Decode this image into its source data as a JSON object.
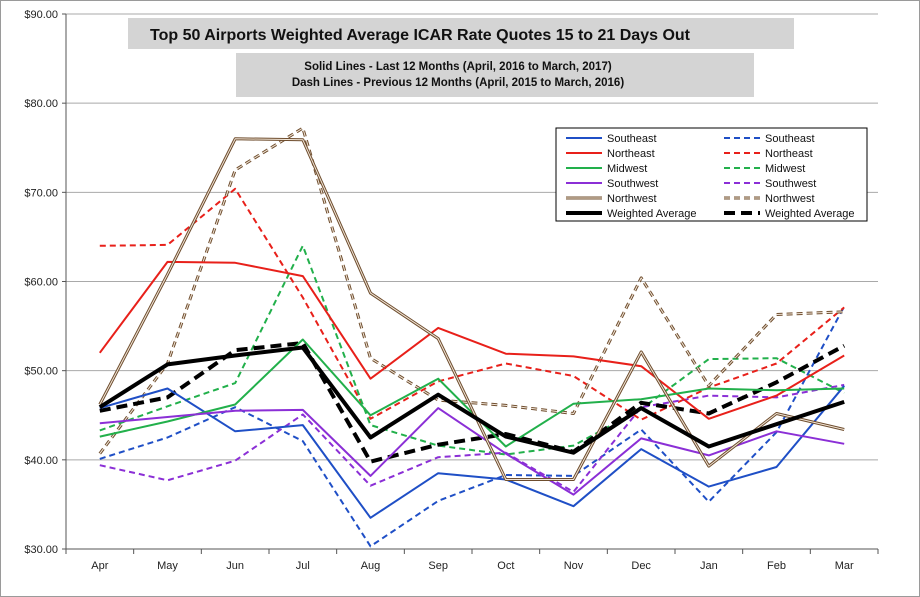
{
  "chart_data": {
    "type": "line",
    "title": "Top 50 Airports Weighted Average ICAR Rate Quotes 15 to 21 Days Out",
    "subtitle_lines": [
      "Solid Lines - Last 12 Months  (April, 2016 to March, 2017)",
      "Dash Lines - Previous 12 Months  (April, 2015 to March, 2016)"
    ],
    "categories": [
      "Apr",
      "May",
      "Jun",
      "Jul",
      "Aug",
      "Sep",
      "Oct",
      "Nov",
      "Dec",
      "Jan",
      "Feb",
      "Mar"
    ],
    "ylim": [
      30,
      90
    ],
    "yticks": [
      30,
      40,
      50,
      60,
      70,
      80,
      90
    ],
    "ytick_labels": [
      "$30.00",
      "$40.00",
      "$50.00",
      "$60.00",
      "$70.00",
      "$80.00",
      "$90.00"
    ],
    "grid": "horizontal",
    "legend_position": "top-right",
    "series": [
      {
        "name": "Southeast",
        "style": "solid",
        "color": "#1f4fc6",
        "values": [
          45.8,
          48.0,
          43.2,
          43.9,
          33.5,
          38.5,
          37.8,
          34.8,
          41.2,
          37.0,
          39.2,
          48.3
        ]
      },
      {
        "name": "Northeast",
        "style": "solid",
        "color": "#e8201a",
        "values": [
          52.0,
          62.2,
          62.1,
          60.6,
          49.1,
          54.8,
          51.9,
          51.6,
          50.5,
          44.6,
          47.2,
          51.7
        ]
      },
      {
        "name": "Midwest",
        "style": "solid",
        "color": "#22b04b",
        "values": [
          42.6,
          44.3,
          46.2,
          53.5,
          45.0,
          49.1,
          41.5,
          46.3,
          46.8,
          48.0,
          47.8,
          48.0
        ]
      },
      {
        "name": "Southwest",
        "style": "solid",
        "color": "#8b2fd6",
        "values": [
          44.1,
          44.8,
          45.5,
          45.6,
          38.2,
          45.8,
          40.7,
          36.1,
          42.4,
          40.5,
          43.2,
          41.8
        ]
      },
      {
        "name": "Northwest",
        "style": "solid",
        "color": "#a07a56",
        "values": [
          46.2,
          60.8,
          76.0,
          75.9,
          58.7,
          53.6,
          37.8,
          37.8,
          52.1,
          39.3,
          45.2,
          43.4
        ]
      },
      {
        "name": "Weighted Average",
        "style": "solid",
        "color": "#000000",
        "values": [
          45.9,
          50.7,
          51.7,
          52.6,
          42.5,
          47.3,
          42.6,
          40.8,
          45.8,
          41.5,
          44.0,
          46.5
        ]
      },
      {
        "name": "Southeast",
        "style": "dashed",
        "color": "#1f4fc6",
        "values": [
          40.1,
          42.5,
          45.9,
          42.1,
          30.3,
          35.4,
          38.3,
          38.2,
          43.4,
          35.3,
          43.1,
          57.2
        ]
      },
      {
        "name": "Northeast",
        "style": "dashed",
        "color": "#e8201a",
        "values": [
          64.0,
          64.1,
          70.4,
          58.2,
          44.6,
          48.8,
          50.8,
          49.4,
          44.5,
          48.1,
          50.8,
          57.1
        ]
      },
      {
        "name": "Midwest",
        "style": "dashed",
        "color": "#22b04b",
        "values": [
          43.3,
          46.0,
          48.6,
          64.0,
          43.9,
          41.6,
          40.6,
          41.6,
          45.7,
          51.3,
          51.4,
          47.5
        ]
      },
      {
        "name": "Southwest",
        "style": "dashed",
        "color": "#8b2fd6",
        "values": [
          39.4,
          37.7,
          39.9,
          45.1,
          37.1,
          40.3,
          40.8,
          36.4,
          45.9,
          47.2,
          47.0,
          48.4
        ]
      },
      {
        "name": "Northwest",
        "style": "dashed",
        "color": "#a07a56",
        "values": [
          40.7,
          50.8,
          72.5,
          77.2,
          51.4,
          46.7,
          46.1,
          45.2,
          60.4,
          48.3,
          56.3,
          56.6
        ]
      },
      {
        "name": "Weighted Average",
        "style": "dashed",
        "color": "#000000",
        "values": [
          45.5,
          47.0,
          52.3,
          53.1,
          39.8,
          41.7,
          42.9,
          40.9,
          46.4,
          45.2,
          48.7,
          52.8
        ]
      }
    ]
  }
}
